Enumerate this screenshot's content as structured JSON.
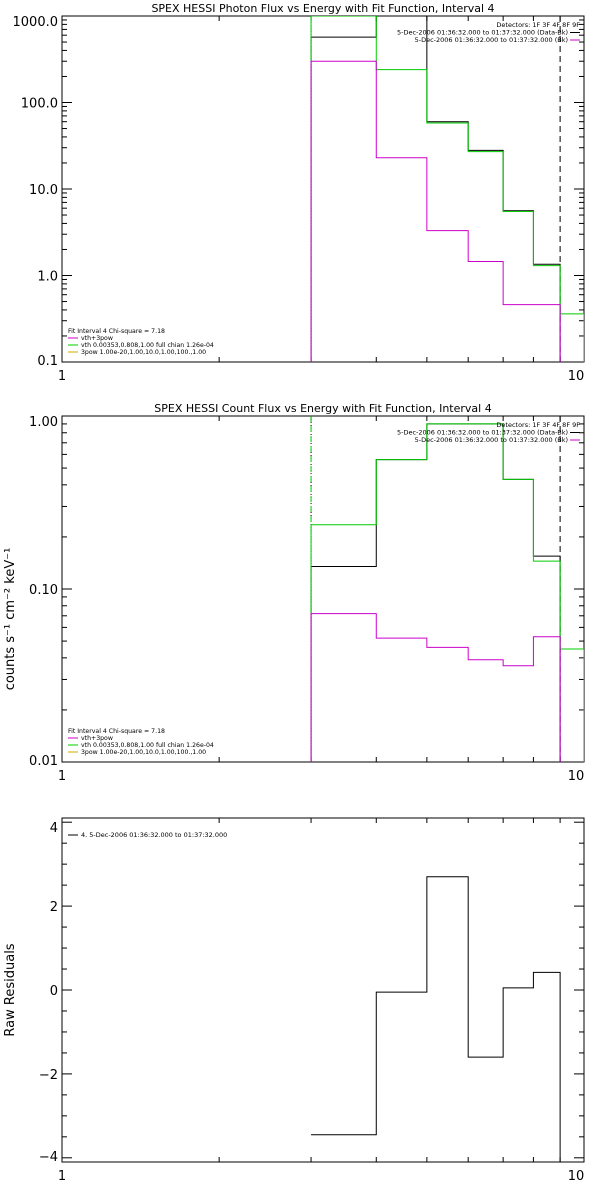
{
  "chart_data": [
    {
      "type": "line",
      "title": "SPEX HESSI Photon Flux vs Energy with Fit Function, Interval 4",
      "xscale": "log",
      "yscale": "log",
      "xlim": [
        1,
        10
      ],
      "ylim": [
        0.1,
        1000
      ],
      "x_ticks": [
        "1",
        "10"
      ],
      "y_ticks": [
        {
          "v": 0.1,
          "label": "0.1"
        },
        {
          "v": 1,
          "label": "1.0"
        },
        {
          "v": 10,
          "label": "10.0"
        },
        {
          "v": 100,
          "label": "100.0"
        },
        {
          "v": 1000,
          "label": "1000.0"
        }
      ],
      "edges": [
        3,
        4,
        5,
        6,
        7,
        8,
        9,
        10
      ],
      "series": [
        {
          "key": "data",
          "color": "#000000",
          "values": [
            570,
            1000,
            60,
            28,
            5.6,
            1.35,
            null
          ]
        },
        {
          "key": "total",
          "color": "#00cc00",
          "values": [
            1000,
            240,
            58,
            27,
            5.5,
            1.3,
            0.36
          ]
        },
        {
          "key": "bk",
          "color": "#cc00cc",
          "values": [
            300,
            23,
            3.3,
            1.45,
            0.46,
            0.46,
            null
          ]
        }
      ],
      "vlines": [
        {
          "x": 3,
          "style": "dotted",
          "color": "#000000"
        },
        {
          "x": 3,
          "style": "dashed",
          "color": "#00cc00"
        },
        {
          "x": 9,
          "style": "dashed",
          "color": "#000000"
        }
      ],
      "legend_top": [
        {
          "text": "Detectors: 1F 3F 4F 8F 9F",
          "color": ""
        },
        {
          "text": "5-Dec-2006 01:36:32.000 to 01:37:32.000 (Data-Bk)",
          "color": "#000000"
        },
        {
          "text": "5-Dec-2006 01:36:32.000 to 01:37:32.000 (Bk)",
          "color": "#cc00cc"
        }
      ],
      "legend_bottom": [
        {
          "text": "Fit Interval 4   Chi-square = 7.18",
          "color": ""
        },
        {
          "text": "vth+3pow",
          "color": "#cc00cc"
        },
        {
          "text": "vth 0.00353,0.808,1.00  full chian 1.26e-04",
          "color": "#00cc00"
        },
        {
          "text": "3pow 1.00e-20,1.00,10.0,1.00,100.,1.00",
          "color": "#ccaa00"
        }
      ]
    },
    {
      "type": "line",
      "title": "SPEX HESSI Count Flux vs Energy with Fit Function, Interval 4",
      "ylabel": "counts s⁻¹ cm⁻² keV⁻¹",
      "xscale": "log",
      "yscale": "log",
      "xlim": [
        1,
        10
      ],
      "ylim": [
        0.01,
        1
      ],
      "x_ticks": [
        "1",
        "10"
      ],
      "y_ticks": [
        {
          "v": 0.01,
          "label": "0.01"
        },
        {
          "v": 0.1,
          "label": "0.10"
        },
        {
          "v": 1,
          "label": "1.00"
        }
      ],
      "edges": [
        3,
        4,
        5,
        6,
        7,
        8,
        9,
        10
      ],
      "series": [
        {
          "key": "data",
          "color": "#000000",
          "values": [
            0.135,
            0.56,
            0.9,
            0.9,
            0.43,
            0.155,
            null
          ]
        },
        {
          "key": "total",
          "color": "#00cc00",
          "values": [
            0.235,
            0.56,
            0.9,
            0.9,
            0.43,
            0.145,
            0.045
          ]
        },
        {
          "key": "bk",
          "color": "#cc00cc",
          "values": [
            0.072,
            0.052,
            0.046,
            0.039,
            0.036,
            0.053,
            null
          ]
        }
      ],
      "vlines": [
        {
          "x": 3,
          "style": "dotted",
          "color": "#000000"
        },
        {
          "x": 3,
          "style": "dashed",
          "color": "#00cc00"
        },
        {
          "x": 9,
          "style": "dashed",
          "color": "#000000"
        }
      ],
      "legend_top": [
        {
          "text": "Detectors: 1F 3F 4F 8F 9F",
          "color": ""
        },
        {
          "text": "5-Dec-2006 01:36:32.000 to 01:37:32.000 (Data-Bk)",
          "color": "#000000"
        },
        {
          "text": "5-Dec-2006 01:36:32.000 to 01:37:32.000 (Bk)",
          "color": "#cc00cc"
        }
      ],
      "legend_bottom": [
        {
          "text": "Fit Interval 4   Chi-square = 7.18",
          "color": ""
        },
        {
          "text": "vth+3pow",
          "color": "#cc00cc"
        },
        {
          "text": "vth 0.00353,0.808,1.00  full chian 1.26e-04",
          "color": "#00cc00"
        },
        {
          "text": "3pow 1.00e-20,1.00,10.0,1.00,100.,1.00",
          "color": "#ccaa00"
        }
      ]
    },
    {
      "type": "line",
      "ylabel": "Raw Residuals",
      "xscale": "log",
      "yscale": "linear",
      "xlim": [
        1,
        10
      ],
      "ylim": [
        -4.1,
        4.1
      ],
      "x_ticks": [
        "1",
        "10"
      ],
      "y_ticks": [
        {
          "v": -4,
          "label": "−4"
        },
        {
          "v": -2,
          "label": "−2"
        },
        {
          "v": 0,
          "label": "0"
        },
        {
          "v": 2,
          "label": "2"
        },
        {
          "v": 4,
          "label": "4"
        }
      ],
      "edges": [
        3,
        4,
        5,
        6,
        7,
        8,
        9
      ],
      "series": [
        {
          "key": "residuals",
          "color": "#000000",
          "values": [
            -3.45,
            -0.05,
            2.7,
            -1.6,
            0.05,
            0.42
          ]
        }
      ],
      "legend_top": [],
      "legend_bottom": [],
      "legend_left": [
        {
          "text": "4.  5-Dec-2006 01:36:32.000 to 01:37:32.000",
          "color": "#000000"
        }
      ]
    }
  ]
}
